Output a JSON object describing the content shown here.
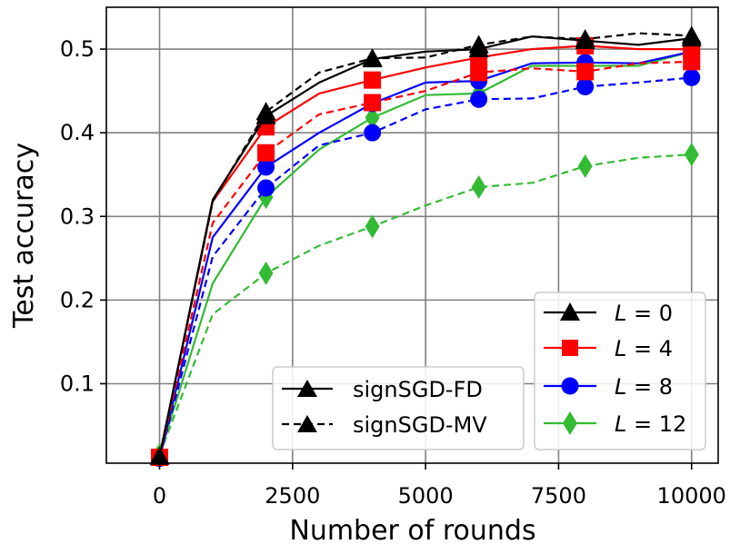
{
  "chart_data": {
    "type": "line",
    "title": "",
    "xlabel": "Number of rounds",
    "ylabel": "Test accuracy",
    "xlim": [
      -1000,
      10500
    ],
    "ylim": [
      0.005,
      0.55
    ],
    "xticks": [
      0,
      2500,
      5000,
      7500,
      10000
    ],
    "xtick_labels": [
      "0",
      "2500",
      "5000",
      "7500",
      "10000"
    ],
    "yticks": [
      0.1,
      0.2,
      0.3,
      0.4,
      0.5
    ],
    "ytick_labels": [
      "0.1",
      "0.2",
      "0.3",
      "0.4",
      "0.5"
    ],
    "grid": true,
    "legends": [
      {
        "placement": "bottom-center",
        "entries": [
          {
            "label": "signSGD-FD",
            "style": "solid",
            "marker": "triangle",
            "color": "#000000"
          },
          {
            "label": "signSGD-MV",
            "style": "dashed",
            "marker": "triangle",
            "color": "#000000"
          }
        ]
      },
      {
        "placement": "bottom-right",
        "entries": [
          {
            "prefix": "L",
            "suffix": " = 0",
            "style": "solid",
            "marker": "triangle",
            "color": "#000000"
          },
          {
            "prefix": "L",
            "suffix": " = 4",
            "style": "solid",
            "marker": "square",
            "color": "#ff0000"
          },
          {
            "prefix": "L",
            "suffix": " = 8",
            "style": "solid",
            "marker": "circle",
            "color": "#0000ff"
          },
          {
            "prefix": "L",
            "suffix": " = 12",
            "style": "solid",
            "marker": "diamond",
            "color": "#33bb33"
          }
        ]
      }
    ],
    "x": [
      0,
      1000,
      2000,
      3000,
      4000,
      5000,
      6000,
      7000,
      8000,
      9000,
      10000
    ],
    "marker_x": [
      0,
      2000,
      4000,
      6000,
      8000,
      10000
    ],
    "series": [
      {
        "name": "L = 12, signSGD-MV",
        "color": "#33bb33",
        "style": "dashed",
        "marker": "diamond",
        "values": [
          0.015,
          0.183,
          0.232,
          0.265,
          0.288,
          0.313,
          0.335,
          0.34,
          0.36,
          0.37,
          0.374
        ]
      },
      {
        "name": "L = 12, signSGD-FD",
        "color": "#33bb33",
        "style": "solid",
        "marker": "diamond",
        "values": [
          0.015,
          0.22,
          0.323,
          0.38,
          0.418,
          0.445,
          0.447,
          0.48,
          0.48,
          0.48,
          0.497
        ]
      },
      {
        "name": "L = 8, signSGD-MV",
        "color": "#0000ff",
        "style": "dashed",
        "marker": "circle",
        "values": [
          0.011,
          0.252,
          0.334,
          0.385,
          0.4,
          0.428,
          0.44,
          0.441,
          0.455,
          0.46,
          0.466
        ]
      },
      {
        "name": "L = 8, signSGD-FD",
        "color": "#0000ff",
        "style": "solid",
        "marker": "circle",
        "values": [
          0.011,
          0.275,
          0.359,
          0.4,
          0.435,
          0.46,
          0.462,
          0.483,
          0.484,
          0.483,
          0.497
        ]
      },
      {
        "name": "L = 4, signSGD-MV",
        "color": "#ff0000",
        "style": "dashed",
        "marker": "square",
        "values": [
          0.012,
          0.292,
          0.376,
          0.422,
          0.436,
          0.45,
          0.472,
          0.477,
          0.473,
          0.483,
          0.485
        ]
      },
      {
        "name": "L = 4, signSGD-FD",
        "color": "#ff0000",
        "style": "solid",
        "marker": "square",
        "values": [
          0.012,
          0.318,
          0.407,
          0.447,
          0.463,
          0.478,
          0.49,
          0.5,
          0.504,
          0.5,
          0.5
        ]
      },
      {
        "name": "L = 0, signSGD-MV",
        "color": "#000000",
        "style": "dashed",
        "marker": "triangle",
        "values": [
          0.013,
          0.318,
          0.425,
          0.472,
          0.489,
          0.49,
          0.505,
          0.515,
          0.512,
          0.519,
          0.516
        ]
      },
      {
        "name": "L = 0, signSGD-FD",
        "color": "#000000",
        "style": "solid",
        "marker": "triangle",
        "values": [
          0.013,
          0.32,
          0.42,
          0.46,
          0.488,
          0.497,
          0.5,
          0.515,
          0.51,
          0.505,
          0.513
        ]
      }
    ]
  }
}
